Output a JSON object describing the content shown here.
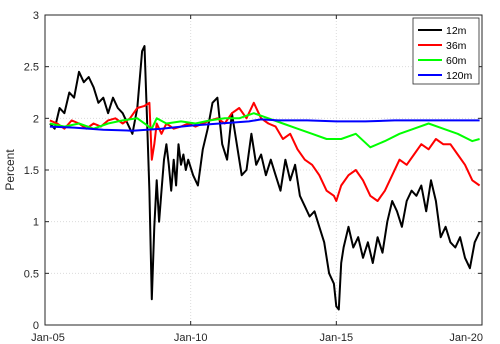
{
  "chart_data": {
    "type": "line",
    "title": "",
    "xlabel": "",
    "ylabel": "Percent",
    "grid": true,
    "legend_position": "top-right",
    "xlim": [
      "2005-01",
      "2020-01"
    ],
    "ylim": [
      0,
      3
    ],
    "x_ticks": [
      "Jan-05",
      "Jan-10",
      "Jan-15",
      "Jan-20"
    ],
    "y_ticks": [
      "0",
      "0.5",
      "1",
      "1.5",
      "2",
      "2.5",
      "3"
    ],
    "series": [
      {
        "name": "12m",
        "color": "#000000",
        "x": [
          "2005-03",
          "2005-05",
          "2005-07",
          "2005-09",
          "2005-11",
          "2006-01",
          "2006-03",
          "2006-05",
          "2006-07",
          "2006-09",
          "2006-11",
          "2007-01",
          "2007-03",
          "2007-05",
          "2007-07",
          "2007-09",
          "2007-11",
          "2008-01",
          "2008-03",
          "2008-05",
          "2008-06",
          "2008-07",
          "2008-08",
          "2008-09",
          "2008-10",
          "2008-11",
          "2008-12",
          "2009-01",
          "2009-02",
          "2009-03",
          "2009-04",
          "2009-05",
          "2009-06",
          "2009-07",
          "2009-08",
          "2009-09",
          "2009-10",
          "2009-11",
          "2009-12",
          "2010-02",
          "2010-04",
          "2010-06",
          "2010-08",
          "2010-10",
          "2010-12",
          "2011-02",
          "2011-04",
          "2011-06",
          "2011-08",
          "2011-10",
          "2011-12",
          "2012-02",
          "2012-04",
          "2012-06",
          "2012-08",
          "2012-10",
          "2012-12",
          "2013-02",
          "2013-04",
          "2013-06",
          "2013-08",
          "2013-10",
          "2013-12",
          "2014-02",
          "2014-04",
          "2014-06",
          "2014-08",
          "2014-10",
          "2014-12",
          "2015-01",
          "2015-02",
          "2015-03",
          "2015-04",
          "2015-06",
          "2015-08",
          "2015-10",
          "2015-12",
          "2016-02",
          "2016-04",
          "2016-06",
          "2016-08",
          "2016-10",
          "2016-12",
          "2017-02",
          "2017-04",
          "2017-06",
          "2017-08",
          "2017-10",
          "2017-12",
          "2018-02",
          "2018-04",
          "2018-06",
          "2018-08",
          "2018-10",
          "2018-12",
          "2019-02",
          "2019-04",
          "2019-06",
          "2019-08",
          "2019-10",
          "2019-12"
        ],
        "values": [
          1.95,
          1.9,
          2.1,
          2.05,
          2.25,
          2.2,
          2.45,
          2.35,
          2.4,
          2.3,
          2.15,
          2.2,
          2.05,
          2.2,
          2.1,
          2.05,
          1.95,
          1.85,
          2.1,
          2.65,
          2.7,
          2.0,
          1.3,
          0.25,
          0.95,
          1.4,
          1.0,
          1.3,
          1.6,
          1.75,
          1.55,
          1.3,
          1.6,
          1.35,
          1.75,
          1.55,
          1.65,
          1.5,
          1.6,
          1.45,
          1.35,
          1.7,
          1.9,
          2.15,
          2.2,
          1.75,
          1.6,
          2.05,
          1.75,
          1.45,
          1.5,
          1.85,
          1.55,
          1.65,
          1.45,
          1.6,
          1.45,
          1.3,
          1.6,
          1.4,
          1.55,
          1.25,
          1.15,
          1.05,
          1.1,
          0.95,
          0.8,
          0.5,
          0.4,
          0.18,
          0.15,
          0.6,
          0.75,
          0.95,
          0.75,
          0.85,
          0.65,
          0.8,
          0.6,
          0.85,
          0.7,
          1.0,
          1.2,
          1.1,
          0.95,
          1.2,
          1.3,
          1.25,
          1.35,
          1.1,
          1.4,
          1.2,
          0.85,
          0.95,
          0.8,
          0.75,
          0.85,
          0.65,
          0.55,
          0.8,
          0.9
        ]
      },
      {
        "name": "36m",
        "color": "#ff0000",
        "x": [
          "2005-03",
          "2005-06",
          "2005-09",
          "2005-12",
          "2006-03",
          "2006-06",
          "2006-09",
          "2006-12",
          "2007-03",
          "2007-06",
          "2007-09",
          "2007-12",
          "2008-03",
          "2008-06",
          "2008-08",
          "2008-09",
          "2008-10",
          "2008-11",
          "2009-01",
          "2009-03",
          "2009-06",
          "2009-09",
          "2009-12",
          "2010-03",
          "2010-06",
          "2010-09",
          "2010-12",
          "2011-03",
          "2011-06",
          "2011-09",
          "2011-12",
          "2012-03",
          "2012-06",
          "2012-09",
          "2012-12",
          "2013-03",
          "2013-06",
          "2013-09",
          "2013-12",
          "2014-03",
          "2014-06",
          "2014-09",
          "2014-12",
          "2015-01",
          "2015-03",
          "2015-06",
          "2015-09",
          "2015-12",
          "2016-03",
          "2016-06",
          "2016-09",
          "2016-12",
          "2017-03",
          "2017-06",
          "2017-09",
          "2017-12",
          "2018-03",
          "2018-06",
          "2018-09",
          "2018-12",
          "2019-03",
          "2019-06",
          "2019-09",
          "2019-12"
        ],
        "values": [
          1.98,
          1.95,
          1.9,
          1.98,
          1.95,
          1.9,
          1.95,
          1.92,
          1.98,
          2.0,
          1.95,
          2.0,
          2.1,
          2.12,
          2.15,
          1.6,
          1.75,
          1.95,
          1.85,
          1.95,
          1.9,
          1.92,
          1.95,
          1.92,
          1.95,
          1.98,
          2.0,
          1.95,
          2.05,
          2.1,
          2.0,
          2.15,
          2.0,
          1.95,
          1.92,
          1.8,
          1.85,
          1.7,
          1.6,
          1.55,
          1.45,
          1.3,
          1.25,
          1.2,
          1.35,
          1.45,
          1.5,
          1.4,
          1.25,
          1.2,
          1.3,
          1.45,
          1.6,
          1.55,
          1.65,
          1.75,
          1.7,
          1.8,
          1.75,
          1.75,
          1.65,
          1.55,
          1.4,
          1.35
        ]
      },
      {
        "name": "60m",
        "color": "#00ff00",
        "x": [
          "2005-03",
          "2005-09",
          "2006-03",
          "2006-09",
          "2007-03",
          "2007-09",
          "2008-03",
          "2008-09",
          "2008-11",
          "2009-03",
          "2009-09",
          "2010-03",
          "2010-09",
          "2011-03",
          "2011-09",
          "2012-03",
          "2012-09",
          "2013-03",
          "2013-09",
          "2014-03",
          "2014-09",
          "2015-03",
          "2015-09",
          "2016-03",
          "2016-09",
          "2017-03",
          "2017-09",
          "2018-03",
          "2018-09",
          "2019-03",
          "2019-09",
          "2019-12"
        ],
        "values": [
          1.95,
          1.92,
          1.95,
          1.9,
          1.95,
          1.98,
          2.0,
          1.9,
          2.0,
          1.95,
          1.97,
          1.95,
          1.98,
          2.0,
          2.0,
          2.05,
          2.0,
          1.95,
          1.9,
          1.85,
          1.8,
          1.8,
          1.85,
          1.72,
          1.78,
          1.85,
          1.9,
          1.95,
          1.9,
          1.85,
          1.78,
          1.8
        ]
      },
      {
        "name": "120m",
        "color": "#0000ff",
        "x": [
          "2005-03",
          "2006-01",
          "2007-01",
          "2008-01",
          "2009-01",
          "2010-01",
          "2011-01",
          "2012-01",
          "2012-06",
          "2013-01",
          "2014-01",
          "2015-01",
          "2016-01",
          "2017-01",
          "2018-01",
          "2019-01",
          "2019-12"
        ],
        "values": [
          1.92,
          1.91,
          1.89,
          1.88,
          1.9,
          1.93,
          1.95,
          1.97,
          1.99,
          1.98,
          1.98,
          1.97,
          1.97,
          1.98,
          1.98,
          1.98,
          1.98
        ]
      }
    ]
  }
}
